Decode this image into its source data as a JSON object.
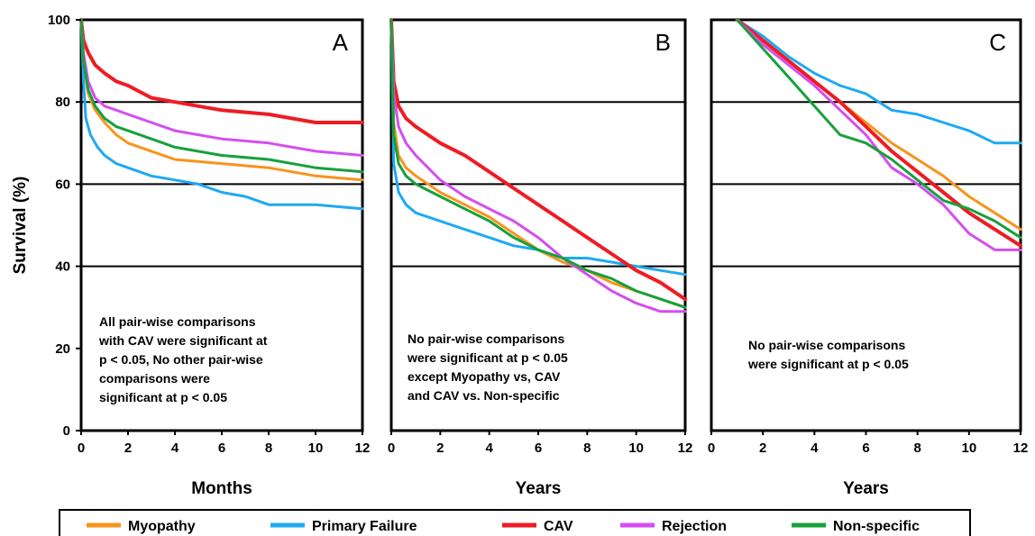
{
  "chart_data": [
    {
      "type": "line",
      "panel_letter": "A",
      "xlabel": "Months",
      "ylabel": "Survival (%)",
      "xlim": [
        0,
        12
      ],
      "ylim": [
        0,
        100
      ],
      "x_ticks": [
        "0",
        "2",
        "4",
        "6",
        "8",
        "10",
        "12"
      ],
      "y_ticks": [
        "0",
        "20",
        "40",
        "60",
        "80",
        "100"
      ],
      "gridlines_y": [
        40,
        60,
        80
      ],
      "annotation": [
        "All pair-wise comparisons",
        "with CAV were significant at",
        "p < 0.05, No other pair-wise",
        "comparisons were",
        "significant at p < 0.05"
      ],
      "series": [
        {
          "name": "Myopathy",
          "x": [
            0,
            0.1,
            0.3,
            0.6,
            1,
            1.5,
            2,
            3,
            4,
            6,
            8,
            10,
            12
          ],
          "y": [
            100,
            90,
            82,
            78,
            75,
            72,
            70,
            68,
            66,
            65,
            64,
            62,
            61
          ]
        },
        {
          "name": "Primary Failure",
          "x": [
            0,
            0.1,
            0.2,
            0.4,
            0.7,
            1,
            1.5,
            2,
            3,
            4,
            5,
            6,
            7,
            8,
            10,
            12
          ],
          "y": [
            100,
            85,
            76,
            72,
            69,
            67,
            65,
            64,
            62,
            61,
            60,
            58,
            57,
            55,
            55,
            54
          ]
        },
        {
          "name": "CAV",
          "x": [
            0,
            0.1,
            0.3,
            0.6,
            1,
            1.5,
            2,
            3,
            4,
            5,
            6,
            8,
            10,
            12
          ],
          "y": [
            100,
            95,
            92,
            89,
            87,
            85,
            84,
            81,
            80,
            79,
            78,
            77,
            75,
            75
          ]
        },
        {
          "name": "Rejection",
          "x": [
            0,
            0.1,
            0.3,
            0.6,
            1,
            1.5,
            2,
            3,
            4,
            6,
            8,
            10,
            12
          ],
          "y": [
            100,
            92,
            85,
            81,
            79,
            78,
            77,
            75,
            73,
            71,
            70,
            68,
            67
          ]
        },
        {
          "name": "Non-specific",
          "x": [
            0,
            0.1,
            0.3,
            0.6,
            1,
            1.5,
            2,
            3,
            4,
            6,
            8,
            10,
            12
          ],
          "y": [
            100,
            90,
            83,
            79,
            76,
            74,
            73,
            71,
            69,
            67,
            66,
            64,
            63
          ]
        }
      ]
    },
    {
      "type": "line",
      "panel_letter": "B",
      "xlabel": "Years",
      "xlim": [
        0,
        12
      ],
      "ylim": [
        0,
        100
      ],
      "x_ticks": [
        "0",
        "2",
        "4",
        "6",
        "8",
        "10",
        "12"
      ],
      "gridlines_y": [
        40,
        60,
        80
      ],
      "annotation": [
        "No pair-wise comparisons",
        "were significant at p < 0.05",
        "except Myopathy vs, CAV",
        "and CAV vs. Non-specific"
      ],
      "series": [
        {
          "name": "Myopathy",
          "x": [
            0,
            0.1,
            0.3,
            0.6,
            1,
            2,
            3,
            4,
            5,
            6,
            7,
            8,
            9,
            10,
            11,
            12
          ],
          "y": [
            100,
            75,
            67,
            64,
            62,
            58,
            55,
            52,
            48,
            44,
            41,
            39,
            36,
            34,
            32,
            30
          ]
        },
        {
          "name": "Primary Failure",
          "x": [
            0,
            0.1,
            0.3,
            0.6,
            1,
            2,
            3,
            4,
            5,
            6,
            7,
            8,
            9,
            10,
            11,
            12
          ],
          "y": [
            100,
            65,
            58,
            55,
            53,
            51,
            49,
            47,
            45,
            44,
            42,
            42,
            41,
            40,
            39,
            38
          ]
        },
        {
          "name": "CAV",
          "x": [
            0,
            0.1,
            0.3,
            0.6,
            1,
            2,
            3,
            4,
            5,
            6,
            7,
            8,
            9,
            10,
            11,
            12
          ],
          "y": [
            100,
            85,
            79,
            76,
            74,
            70,
            67,
            63,
            59,
            55,
            51,
            47,
            43,
            39,
            36,
            32
          ]
        },
        {
          "name": "Rejection",
          "x": [
            0,
            0.1,
            0.3,
            0.6,
            1,
            2,
            3,
            4,
            5,
            6,
            7,
            8,
            9,
            10,
            11,
            12
          ],
          "y": [
            100,
            82,
            74,
            70,
            67,
            61,
            57,
            54,
            51,
            47,
            42,
            38,
            34,
            31,
            29,
            29
          ]
        },
        {
          "name": "Non-specific",
          "x": [
            0,
            0.1,
            0.3,
            0.6,
            1,
            2,
            3,
            4,
            5,
            6,
            7,
            8,
            9,
            10,
            11,
            12
          ],
          "y": [
            100,
            72,
            65,
            62,
            60,
            57,
            54,
            51,
            47,
            44,
            42,
            39,
            37,
            34,
            32,
            30
          ]
        }
      ]
    },
    {
      "type": "line",
      "panel_letter": "C",
      "xlabel": "Years",
      "xlim": [
        0,
        12
      ],
      "ylim": [
        0,
        100
      ],
      "x_ticks": [
        "0",
        "2",
        "4",
        "6",
        "8",
        "10",
        "12"
      ],
      "gridlines_y": [
        40,
        60,
        80
      ],
      "annotation": [
        "No pair-wise comparisons",
        "were significant at p < 0.05"
      ],
      "series": [
        {
          "name": "Myopathy",
          "x": [
            1,
            2,
            3,
            4,
            5,
            6,
            7,
            8,
            9,
            10,
            11,
            12
          ],
          "y": [
            100,
            95,
            90,
            85,
            80,
            75,
            70,
            66,
            62,
            57,
            53,
            49
          ]
        },
        {
          "name": "Primary Failure",
          "x": [
            1,
            2,
            3,
            4,
            5,
            6,
            7,
            8,
            9,
            10,
            11,
            12
          ],
          "y": [
            100,
            96,
            91,
            87,
            84,
            82,
            78,
            77,
            75,
            73,
            70,
            70
          ]
        },
        {
          "name": "CAV",
          "x": [
            1,
            2,
            3,
            4,
            5,
            6,
            7,
            8,
            9,
            10,
            11,
            12
          ],
          "y": [
            100,
            95,
            90,
            85,
            80,
            74,
            68,
            63,
            58,
            53,
            49,
            45
          ]
        },
        {
          "name": "Rejection",
          "x": [
            1,
            2,
            3,
            4,
            5,
            6,
            7,
            8,
            9,
            10,
            11,
            12
          ],
          "y": [
            100,
            94,
            89,
            84,
            78,
            72,
            64,
            60,
            55,
            48,
            44,
            44
          ]
        },
        {
          "name": "Non-specific",
          "x": [
            1,
            2,
            3,
            4,
            5,
            6,
            7,
            8,
            9,
            10,
            11,
            12
          ],
          "y": [
            100,
            93,
            86,
            79,
            72,
            70,
            66,
            61,
            56,
            54,
            51,
            47
          ]
        }
      ]
    }
  ],
  "legend": [
    {
      "label": "Myopathy",
      "color": "#f7941d"
    },
    {
      "label": "Primary Failure",
      "color": "#1eaaf1"
    },
    {
      "label": "CAV",
      "color": "#ee1c24"
    },
    {
      "label": "Rejection",
      "color": "#d44ef0"
    },
    {
      "label": "Non-specific",
      "color": "#18a03c"
    }
  ]
}
